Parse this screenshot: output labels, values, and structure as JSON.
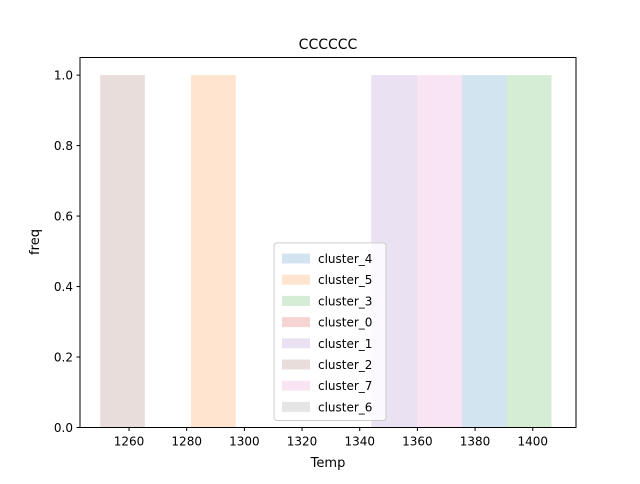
{
  "chart_data": {
    "type": "bar",
    "title": "CCCCCC",
    "xlabel": "Temp",
    "ylabel": "freq",
    "xlim": [
      1243,
      1415
    ],
    "ylim": [
      0,
      1.05
    ],
    "x_ticks": [
      1260,
      1280,
      1300,
      1320,
      1340,
      1360,
      1380,
      1400
    ],
    "y_ticks": [
      0.0,
      0.2,
      0.4,
      0.6,
      0.8,
      1.0
    ],
    "y_tick_labels": [
      "0.0",
      "0.2",
      "0.4",
      "0.6",
      "0.8",
      "1.0"
    ],
    "grid": false,
    "legend_position": "lower-center",
    "series": [
      {
        "name": "cluster_4",
        "color": "#1f77b4",
        "bins": [
          {
            "x0": 1375.5,
            "x1": 1391.0,
            "value": 1.0
          }
        ]
      },
      {
        "name": "cluster_5",
        "color": "#ff7f0e",
        "bins": [
          {
            "x0": 1281.5,
            "x1": 1297.0,
            "value": 1.0
          }
        ]
      },
      {
        "name": "cluster_3",
        "color": "#2ca02c",
        "bins": [
          {
            "x0": 1391.0,
            "x1": 1406.5,
            "value": 1.0
          }
        ]
      },
      {
        "name": "cluster_0",
        "color": "#d62728",
        "bins": []
      },
      {
        "name": "cluster_1",
        "color": "#9467bd",
        "bins": [
          {
            "x0": 1344.0,
            "x1": 1360.0,
            "value": 1.0
          }
        ]
      },
      {
        "name": "cluster_2",
        "color": "#8c564b",
        "bins": [
          {
            "x0": 1250.0,
            "x1": 1265.5,
            "value": 1.0
          }
        ]
      },
      {
        "name": "cluster_7",
        "color": "#e377c2",
        "bins": [
          {
            "x0": 1360.0,
            "x1": 1375.5,
            "value": 1.0
          }
        ]
      },
      {
        "name": "cluster_6",
        "color": "#7f7f7f",
        "bins": []
      }
    ]
  }
}
